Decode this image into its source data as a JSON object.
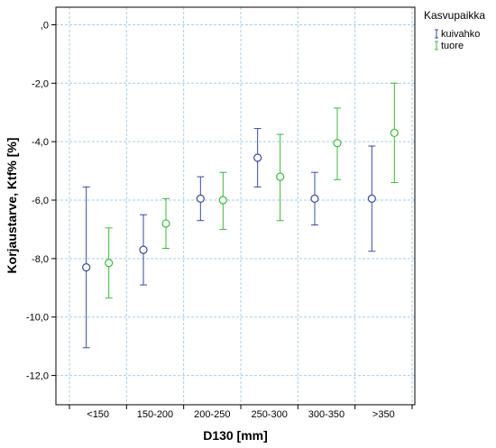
{
  "chart_data": {
    "type": "errorbar",
    "xlabel": "D130 [mm]",
    "ylabel": "Korjaustarve, Ktf% [%]",
    "categories": [
      "<150",
      "150-200",
      "200-250",
      "250-300",
      "300-350",
      ">350"
    ],
    "ylim": [
      -13.0,
      0.6
    ],
    "yticks": [
      ",0",
      "-2,0",
      "-4,0",
      "-6,0",
      "-8,0",
      "-10,0",
      "-12,0"
    ],
    "ytick_values": [
      0,
      -2,
      -4,
      -6,
      -8,
      -10,
      -12
    ],
    "grid": true,
    "legend": {
      "title": "Kasvupaikka",
      "placement": "right"
    },
    "series": [
      {
        "name": "kuivahko",
        "color": "#3b4aa0",
        "mean": [
          -8.3,
          -7.7,
          -5.95,
          -4.55,
          -5.95,
          -5.95
        ],
        "lower": [
          -11.05,
          -8.9,
          -6.7,
          -5.55,
          -6.85,
          -7.75
        ],
        "upper": [
          -5.55,
          -6.5,
          -5.2,
          -3.55,
          -5.05,
          -4.15
        ]
      },
      {
        "name": "tuore",
        "color": "#3cb83c",
        "mean": [
          -8.15,
          -6.8,
          -6.0,
          -5.2,
          -4.05,
          -3.7
        ],
        "lower": [
          -9.35,
          -7.65,
          -7.0,
          -6.7,
          -5.3,
          -5.4
        ],
        "upper": [
          -6.95,
          -5.95,
          -5.05,
          -3.75,
          -2.85,
          -2.0
        ]
      }
    ]
  }
}
